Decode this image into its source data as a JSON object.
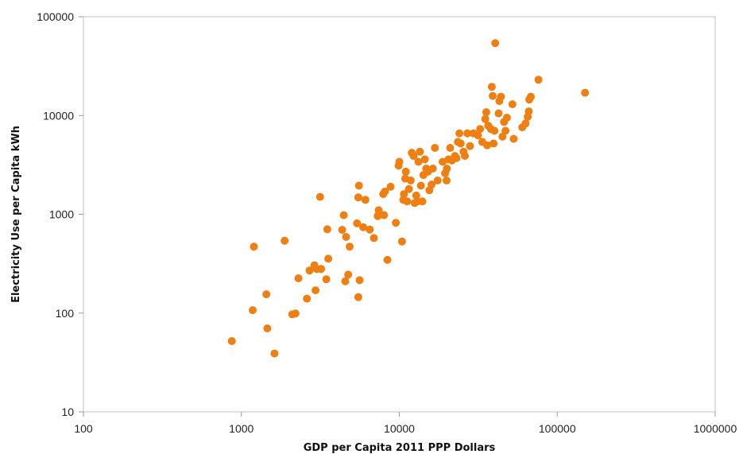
{
  "chart_data": {
    "type": "scatter",
    "title": "",
    "xlabel": "GDP per Capita 2011 PPP Dollars",
    "ylabel": "Electricity Use per Capita kWh",
    "x_scale": "log",
    "y_scale": "log",
    "xlim": [
      100,
      1000000
    ],
    "ylim": [
      10,
      100000
    ],
    "x_ticks": [
      "100",
      "1000",
      "10000",
      "100000",
      "1000000"
    ],
    "y_ticks": [
      "10",
      "100",
      "1000",
      "10000",
      "100000"
    ],
    "grid": false,
    "legend": "none",
    "marker_color": "#f07f12",
    "points": [
      {
        "x": 870,
        "y": 52
      },
      {
        "x": 1180,
        "y": 107
      },
      {
        "x": 1200,
        "y": 470
      },
      {
        "x": 1440,
        "y": 155
      },
      {
        "x": 1460,
        "y": 70
      },
      {
        "x": 1620,
        "y": 39
      },
      {
        "x": 1880,
        "y": 540
      },
      {
        "x": 2100,
        "y": 97
      },
      {
        "x": 2200,
        "y": 99
      },
      {
        "x": 2300,
        "y": 225
      },
      {
        "x": 2600,
        "y": 140
      },
      {
        "x": 2700,
        "y": 270
      },
      {
        "x": 2900,
        "y": 305
      },
      {
        "x": 2950,
        "y": 170
      },
      {
        "x": 3000,
        "y": 280
      },
      {
        "x": 3150,
        "y": 1500
      },
      {
        "x": 3200,
        "y": 280
      },
      {
        "x": 3450,
        "y": 220
      },
      {
        "x": 3500,
        "y": 705
      },
      {
        "x": 3550,
        "y": 355
      },
      {
        "x": 4350,
        "y": 695
      },
      {
        "x": 4450,
        "y": 980
      },
      {
        "x": 4550,
        "y": 210
      },
      {
        "x": 4600,
        "y": 590
      },
      {
        "x": 4750,
        "y": 245
      },
      {
        "x": 4850,
        "y": 470
      },
      {
        "x": 5400,
        "y": 810
      },
      {
        "x": 5500,
        "y": 145
      },
      {
        "x": 5500,
        "y": 1480
      },
      {
        "x": 5550,
        "y": 1950
      },
      {
        "x": 5600,
        "y": 215
      },
      {
        "x": 5900,
        "y": 740
      },
      {
        "x": 6100,
        "y": 1400
      },
      {
        "x": 6500,
        "y": 700
      },
      {
        "x": 6900,
        "y": 575
      },
      {
        "x": 7300,
        "y": 960
      },
      {
        "x": 7400,
        "y": 1100
      },
      {
        "x": 7900,
        "y": 1600
      },
      {
        "x": 8000,
        "y": 980
      },
      {
        "x": 8100,
        "y": 1700
      },
      {
        "x": 8400,
        "y": 345
      },
      {
        "x": 8800,
        "y": 1900
      },
      {
        "x": 9500,
        "y": 820
      },
      {
        "x": 9900,
        "y": 3100
      },
      {
        "x": 10000,
        "y": 3400
      },
      {
        "x": 10400,
        "y": 530
      },
      {
        "x": 10600,
        "y": 1400
      },
      {
        "x": 10700,
        "y": 1600
      },
      {
        "x": 10900,
        "y": 2300
      },
      {
        "x": 11000,
        "y": 2700
      },
      {
        "x": 11200,
        "y": 1350
      },
      {
        "x": 11500,
        "y": 1800
      },
      {
        "x": 11800,
        "y": 2200
      },
      {
        "x": 12000,
        "y": 4200
      },
      {
        "x": 12300,
        "y": 3900
      },
      {
        "x": 12500,
        "y": 1300
      },
      {
        "x": 12800,
        "y": 1550
      },
      {
        "x": 13000,
        "y": 1350
      },
      {
        "x": 13200,
        "y": 3400
      },
      {
        "x": 13500,
        "y": 4300
      },
      {
        "x": 13700,
        "y": 1950
      },
      {
        "x": 14000,
        "y": 1350
      },
      {
        "x": 14200,
        "y": 2500
      },
      {
        "x": 14500,
        "y": 3600
      },
      {
        "x": 14800,
        "y": 2900
      },
      {
        "x": 15200,
        "y": 2700
      },
      {
        "x": 15500,
        "y": 1750
      },
      {
        "x": 16000,
        "y": 2000
      },
      {
        "x": 16300,
        "y": 2900
      },
      {
        "x": 16800,
        "y": 4700
      },
      {
        "x": 17500,
        "y": 2200
      },
      {
        "x": 18800,
        "y": 3400
      },
      {
        "x": 19500,
        "y": 2600
      },
      {
        "x": 19900,
        "y": 2200
      },
      {
        "x": 20000,
        "y": 2900
      },
      {
        "x": 20500,
        "y": 3600
      },
      {
        "x": 21000,
        "y": 4700
      },
      {
        "x": 21500,
        "y": 3500
      },
      {
        "x": 22500,
        "y": 3900
      },
      {
        "x": 23000,
        "y": 3700
      },
      {
        "x": 23500,
        "y": 5400
      },
      {
        "x": 24000,
        "y": 6600
      },
      {
        "x": 24500,
        "y": 5200
      },
      {
        "x": 25500,
        "y": 4300
      },
      {
        "x": 26000,
        "y": 3900
      },
      {
        "x": 27000,
        "y": 6600
      },
      {
        "x": 28000,
        "y": 4900
      },
      {
        "x": 29500,
        "y": 6600
      },
      {
        "x": 31500,
        "y": 6300
      },
      {
        "x": 32500,
        "y": 7300
      },
      {
        "x": 33500,
        "y": 5400
      },
      {
        "x": 35000,
        "y": 9200
      },
      {
        "x": 35500,
        "y": 10800
      },
      {
        "x": 36000,
        "y": 5000
      },
      {
        "x": 36500,
        "y": 7900
      },
      {
        "x": 38000,
        "y": 7300
      },
      {
        "x": 38500,
        "y": 19500
      },
      {
        "x": 39000,
        "y": 15800
      },
      {
        "x": 39500,
        "y": 5200
      },
      {
        "x": 40000,
        "y": 7000
      },
      {
        "x": 40500,
        "y": 54000
      },
      {
        "x": 42500,
        "y": 10500
      },
      {
        "x": 43000,
        "y": 14000
      },
      {
        "x": 44000,
        "y": 15500
      },
      {
        "x": 45000,
        "y": 6100
      },
      {
        "x": 46000,
        "y": 8600
      },
      {
        "x": 47000,
        "y": 7000
      },
      {
        "x": 48000,
        "y": 9500
      },
      {
        "x": 52000,
        "y": 13000
      },
      {
        "x": 53000,
        "y": 5800
      },
      {
        "x": 60000,
        "y": 7600
      },
      {
        "x": 63000,
        "y": 8300
      },
      {
        "x": 65000,
        "y": 9700
      },
      {
        "x": 66000,
        "y": 11000
      },
      {
        "x": 66500,
        "y": 14500
      },
      {
        "x": 68000,
        "y": 15500
      },
      {
        "x": 76000,
        "y": 23000
      },
      {
        "x": 150000,
        "y": 17000
      }
    ]
  }
}
